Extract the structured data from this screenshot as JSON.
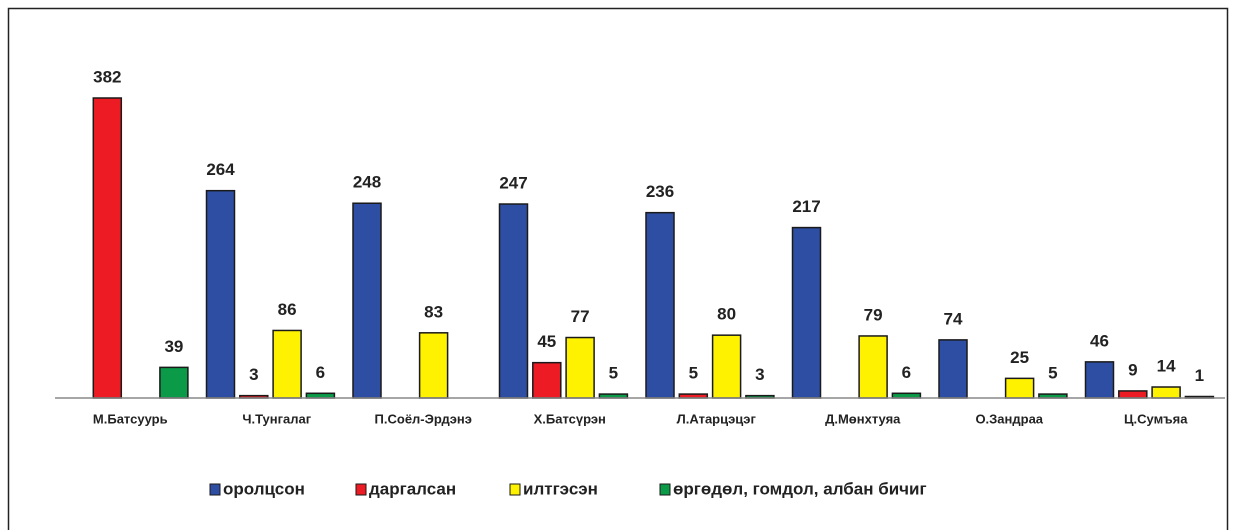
{
  "chart_data": {
    "type": "bar",
    "categories": [
      "М.Батсуурь",
      "Ч.Тунгалаг",
      "П.Соёл-Эрдэнэ",
      "Х.Батсүрэн",
      "Л.Атарцэцэг",
      "Д.Мөнхтуяа",
      "О.Зандраа",
      "Ц.Сумъяа"
    ],
    "series": [
      {
        "name": "оролцсон",
        "color": "#2e4ea3",
        "values": [
          null,
          264,
          248,
          247,
          236,
          217,
          74,
          46
        ]
      },
      {
        "name": "даргалсан",
        "color": "#ed1c24",
        "values": [
          382,
          3,
          null,
          45,
          5,
          null,
          null,
          9
        ]
      },
      {
        "name": "илтгэсэн",
        "color": "#fff200",
        "values": [
          null,
          86,
          83,
          77,
          80,
          79,
          25,
          14
        ]
      },
      {
        "name": "өргөдөл, гомдол, албан бичиг",
        "color": "#0a9a48",
        "values": [
          39,
          6,
          null,
          5,
          3,
          6,
          5,
          1
        ]
      }
    ],
    "legend": "bottom"
  }
}
